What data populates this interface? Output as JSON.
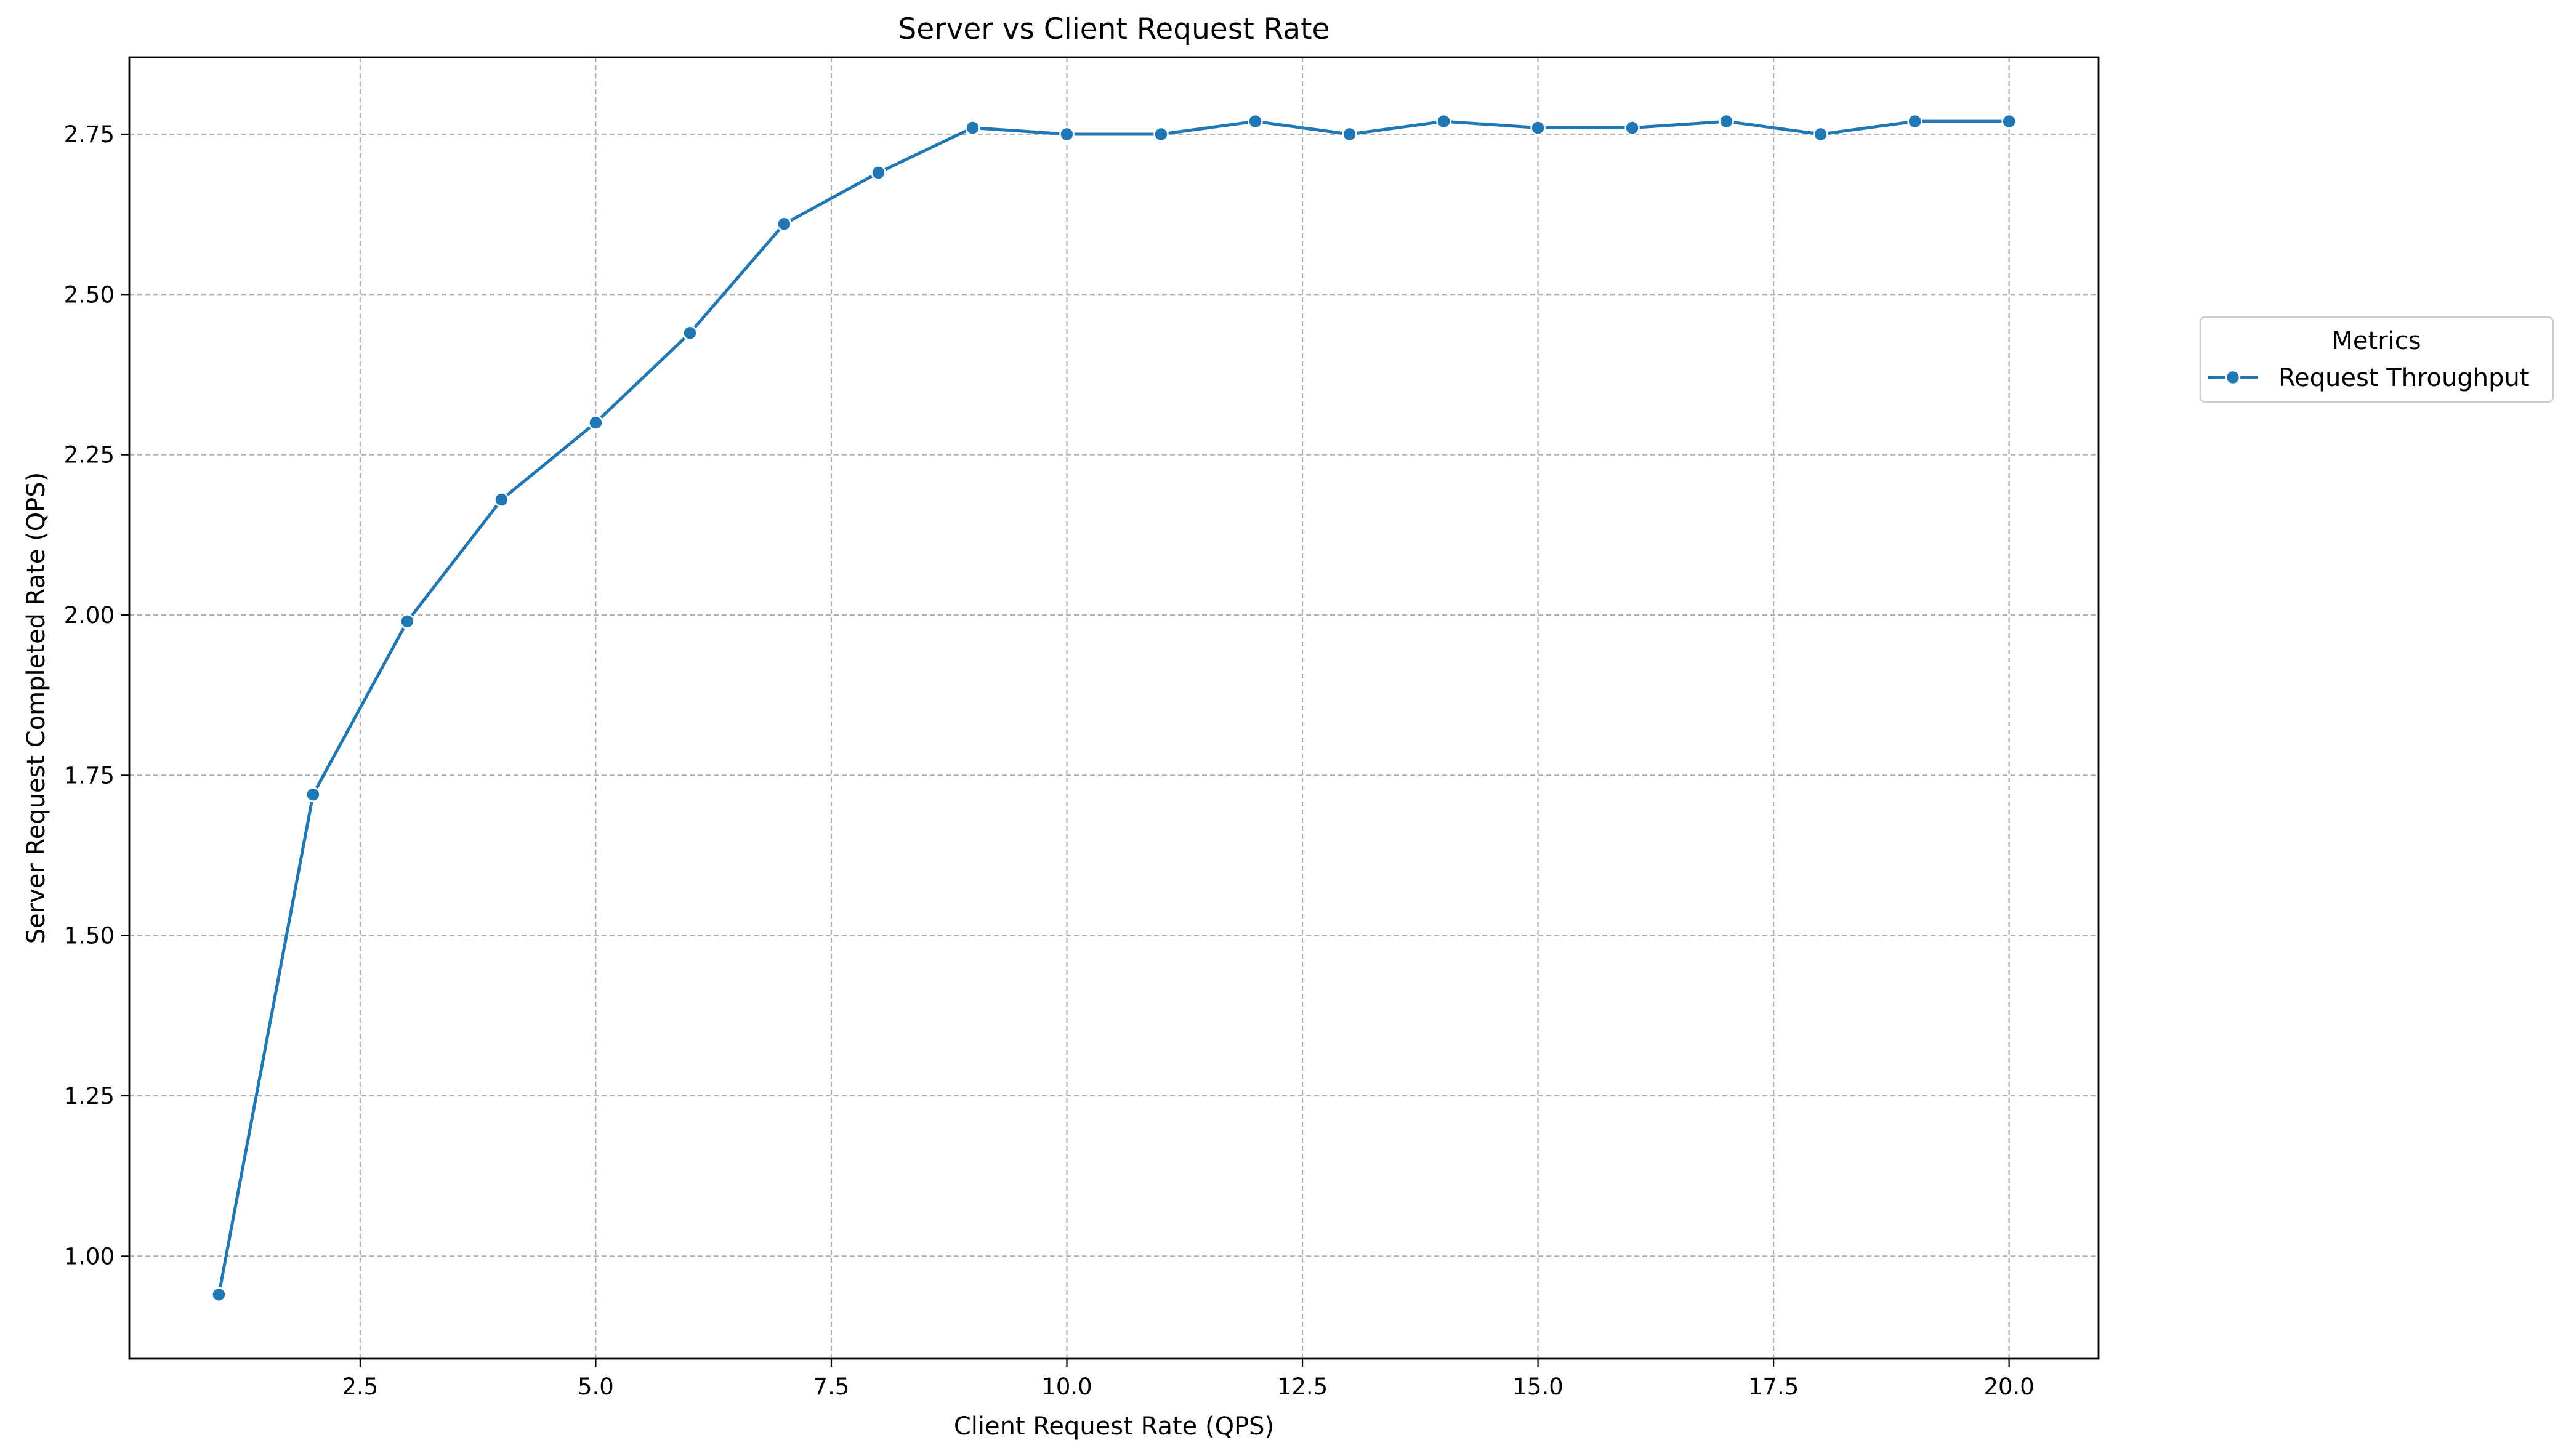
{
  "chart_data": {
    "type": "line",
    "title": "Server vs Client Request Rate",
    "xlabel": "Client Request Rate (QPS)",
    "ylabel": "Server Request Completed Rate (QPS)",
    "xlim": [
      0.05,
      20.95
    ],
    "ylim": [
      0.84,
      2.87
    ],
    "xticks": [
      2.5,
      5.0,
      7.5,
      10.0,
      12.5,
      15.0,
      17.5,
      20.0
    ],
    "xtick_labels": [
      "2.5",
      "5.0",
      "7.5",
      "10.0",
      "12.5",
      "15.0",
      "17.5",
      "20.0"
    ],
    "yticks": [
      1.0,
      1.25,
      1.5,
      1.75,
      2.0,
      2.25,
      2.5,
      2.75
    ],
    "ytick_labels": [
      "1.00",
      "1.25",
      "1.50",
      "1.75",
      "2.00",
      "2.25",
      "2.50",
      "2.75"
    ],
    "grid": true,
    "legend": {
      "title": "Metrics",
      "placement": "outside right, upper"
    },
    "series": [
      {
        "name": "Request Throughput",
        "color": "#1f77b4",
        "marker": "circle",
        "x": [
          1,
          2,
          3,
          4,
          5,
          6,
          7,
          8,
          9,
          10,
          11,
          12,
          13,
          14,
          15,
          16,
          17,
          18,
          19,
          20
        ],
        "y": [
          0.94,
          1.72,
          1.99,
          2.18,
          2.3,
          2.44,
          2.61,
          2.69,
          2.76,
          2.75,
          2.75,
          2.77,
          2.75,
          2.77,
          2.76,
          2.76,
          2.77,
          2.75,
          2.77,
          2.77
        ]
      }
    ]
  }
}
